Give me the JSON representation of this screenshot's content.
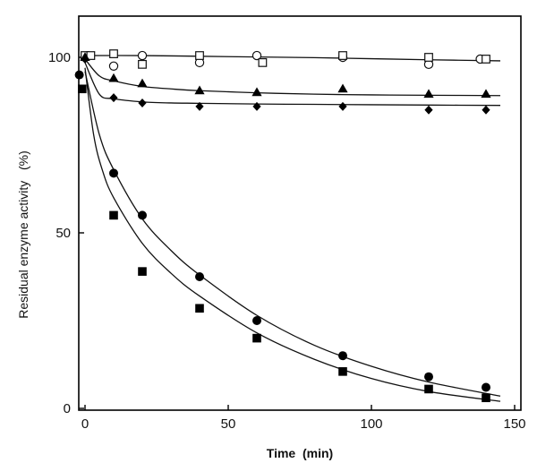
{
  "chart_data": {
    "type": "scatter",
    "title": "",
    "xlabel": "Time  (min)",
    "ylabel": "Residual enzyme activity   (%)",
    "xlim": [
      -1,
      150
    ],
    "ylim": [
      0,
      110
    ],
    "xticks": [
      0,
      50,
      100,
      150
    ],
    "yticks": [
      0,
      50,
      100
    ],
    "grid": false,
    "legend": "none",
    "series": [
      {
        "marker": "open-circle",
        "x": [
          0,
          10,
          20,
          40,
          60,
          90,
          120,
          138
        ],
        "y": [
          100,
          97.5,
          100.5,
          98.5,
          100.5,
          100,
          98,
          99.5
        ],
        "curve": {
          "x": [
            0,
            20,
            40,
            60,
            80,
            100,
            120,
            145
          ],
          "y": [
            100.5,
            100.5,
            100.3,
            100.1,
            99.9,
            99.6,
            99.3,
            99
          ]
        }
      },
      {
        "marker": "open-square",
        "x": [
          0,
          2,
          10,
          20,
          40,
          62,
          90,
          120,
          140
        ],
        "y": [
          100.5,
          100.5,
          101,
          98,
          100.5,
          98.5,
          100.5,
          100,
          99.5
        ],
        "curve": null
      },
      {
        "marker": "filled-triangle",
        "x": [
          0,
          10,
          20,
          40,
          60,
          90,
          120,
          140
        ],
        "y": [
          100,
          94,
          92.5,
          90.5,
          90,
          91,
          89.5,
          89.5
        ],
        "curve": {
          "x": [
            0,
            5,
            10,
            20,
            30,
            40,
            60,
            80,
            100,
            120,
            145
          ],
          "y": [
            99.5,
            94.7,
            93.3,
            91.7,
            91,
            90.5,
            89.9,
            89.5,
            89.3,
            89.2,
            89.1
          ]
        }
      },
      {
        "marker": "filled-diamond",
        "x": [
          0,
          10,
          20,
          40,
          60,
          90,
          120,
          140
        ],
        "y": [
          99.5,
          88.5,
          87,
          86,
          86,
          86,
          85,
          85
        ],
        "curve": {
          "x": [
            0,
            5,
            10,
            20,
            30,
            40,
            60,
            80,
            100,
            120,
            145
          ],
          "y": [
            98.5,
            89.5,
            88.2,
            87.3,
            87,
            86.9,
            86.7,
            86.6,
            86.5,
            86.4,
            86.3
          ]
        }
      },
      {
        "marker": "filled-circle",
        "x": [
          -2,
          10,
          20,
          40,
          60,
          90,
          120,
          140
        ],
        "y": [
          95,
          67,
          55,
          37.5,
          25,
          15,
          9,
          6
        ],
        "curve": {
          "x": [
            0,
            5,
            10,
            20,
            30,
            40,
            60,
            80,
            100,
            120,
            145
          ],
          "y": [
            96,
            78,
            68,
            54,
            45,
            38,
            26.5,
            18,
            12,
            7.5,
            3.5
          ]
        }
      },
      {
        "marker": "filled-square",
        "x": [
          -1,
          10,
          20,
          40,
          60,
          90,
          120,
          140
        ],
        "y": [
          91,
          55,
          39,
          28.5,
          20,
          10.5,
          5.5,
          3
        ],
        "curve": {
          "x": [
            0,
            3,
            6,
            10,
            20,
            30,
            40,
            60,
            80,
            100,
            120,
            145
          ],
          "y": [
            97,
            78,
            68,
            60,
            47,
            38.5,
            32,
            21.5,
            14,
            8.5,
            4.8,
            2
          ]
        }
      }
    ]
  }
}
